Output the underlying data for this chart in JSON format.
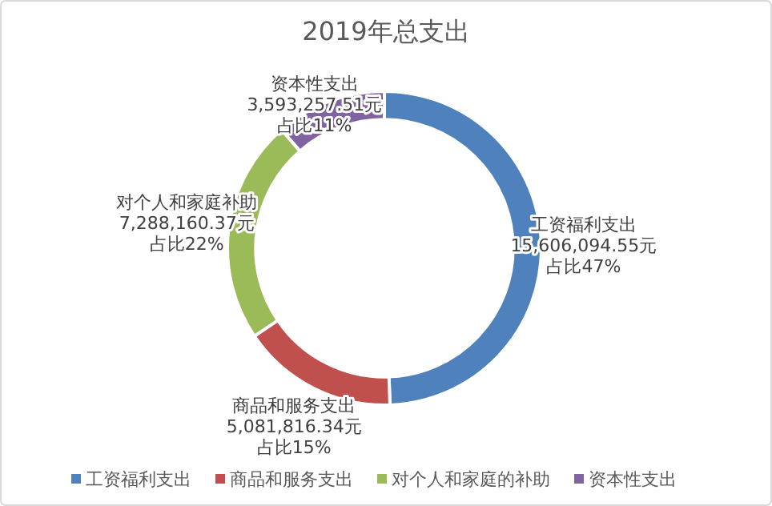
{
  "chart_data": {
    "type": "donut",
    "title": "2019年总支出",
    "categories": [
      "工资福利支出",
      "商品和服务支出",
      "对个人和家庭的补助",
      "资本性支出"
    ],
    "values": [
      15606094.55,
      5081816.34,
      7288160.37,
      3593257.51
    ],
    "colors": [
      "#4f81bd",
      "#c0504d",
      "#9bbb59",
      "#8064a2"
    ],
    "value_labels": [
      "工资福利支出15,606,094.55元占比47%",
      "商品和服务支出5,081,816.34元占比15%",
      "对个人和家庭补助7,288,160.37元占比22%",
      "资本性支出3,593,257.51元占比11%"
    ],
    "legend": "bottom"
  }
}
